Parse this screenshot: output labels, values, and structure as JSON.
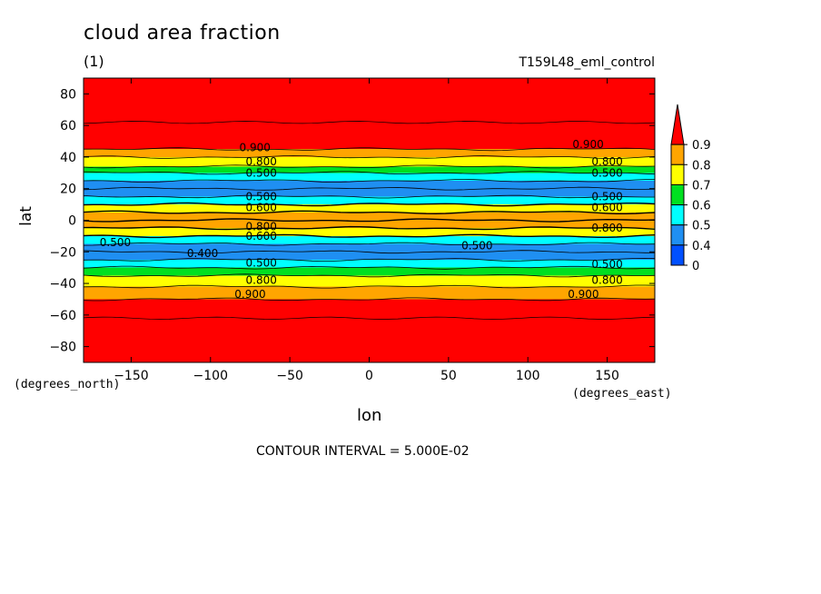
{
  "header": {
    "title": "cloud area fraction",
    "units": "(1)",
    "run_name": "T159L48_eml_control"
  },
  "footer": {
    "contour_interval": "CONTOUR INTERVAL = 5.000E-02",
    "lat_units": "(degrees_north)",
    "lon_units": "(degrees_east)"
  },
  "chart_data": {
    "type": "heatmap",
    "title": "cloud area fraction",
    "xlabel": "lon",
    "ylabel": "lat",
    "xlim": [
      -180,
      180
    ],
    "ylim": [
      -90,
      90
    ],
    "x_ticks": [
      -150,
      -100,
      -50,
      0,
      50,
      100,
      150
    ],
    "y_ticks": [
      80,
      60,
      40,
      20,
      0,
      -20,
      -40,
      -60,
      -80
    ],
    "colorbar": {
      "levels": [
        "0",
        "0.4",
        "0.5",
        "0.6",
        "0.7",
        "0.8",
        "0.9"
      ],
      "colors": [
        "#0050ff",
        "#1f8ff2",
        "#00ffff",
        "#00e020",
        "#ffff00",
        "#ffa500",
        "#ff0000"
      ],
      "extend": "max"
    },
    "zonal_profile": [
      {
        "lat": 90,
        "value": 0.93
      },
      {
        "lat": 45,
        "value": 0.9
      },
      {
        "lat": 40,
        "value": 0.8
      },
      {
        "lat": 34,
        "value": 0.7
      },
      {
        "lat": 30,
        "value": 0.6
      },
      {
        "lat": 25,
        "value": 0.5
      },
      {
        "lat": 20,
        "value": 0.45
      },
      {
        "lat": 15,
        "value": 0.5
      },
      {
        "lat": 10,
        "value": 0.6
      },
      {
        "lat": 5,
        "value": 0.8
      },
      {
        "lat": 0,
        "value": 0.95
      },
      {
        "lat": -5,
        "value": 0.8
      },
      {
        "lat": -10,
        "value": 0.6
      },
      {
        "lat": -15,
        "value": 0.5
      },
      {
        "lat": -20,
        "value": 0.45
      },
      {
        "lat": -25,
        "value": 0.5
      },
      {
        "lat": -30,
        "value": 0.6
      },
      {
        "lat": -35,
        "value": 0.7
      },
      {
        "lat": -42,
        "value": 0.8
      },
      {
        "lat": -50,
        "value": 0.9
      },
      {
        "lat": -90,
        "value": 0.93
      }
    ],
    "contour_labels": [
      {
        "text": "0.900",
        "lon": -72,
        "lat": 46
      },
      {
        "text": "0.800",
        "lon": -68,
        "lat": 37
      },
      {
        "text": "0.500",
        "lon": -68,
        "lat": 15
      },
      {
        "text": "0.500",
        "lon": -68,
        "lat": 30
      },
      {
        "text": "0.600",
        "lon": -68,
        "lat": 8
      },
      {
        "text": "0.800",
        "lon": -68,
        "lat": -4
      },
      {
        "text": "0.600",
        "lon": -68,
        "lat": -10
      },
      {
        "text": "0.500",
        "lon": -160,
        "lat": -14
      },
      {
        "text": "0.400",
        "lon": -105,
        "lat": -21
      },
      {
        "text": "0.500",
        "lon": -68,
        "lat": -27
      },
      {
        "text": "0.800",
        "lon": -68,
        "lat": -38
      },
      {
        "text": "0.900",
        "lon": -75,
        "lat": -47
      },
      {
        "text": "0.500",
        "lon": 68,
        "lat": -16
      },
      {
        "text": "0.900",
        "lon": 138,
        "lat": 48
      },
      {
        "text": "0.800",
        "lon": 150,
        "lat": 37
      },
      {
        "text": "0.500",
        "lon": 150,
        "lat": 30
      },
      {
        "text": "0.500",
        "lon": 150,
        "lat": 15
      },
      {
        "text": "0.600",
        "lon": 150,
        "lat": 8
      },
      {
        "text": "0.800",
        "lon": 150,
        "lat": -5
      },
      {
        "text": "0.500",
        "lon": 150,
        "lat": -28
      },
      {
        "text": "0.800",
        "lon": 150,
        "lat": -38
      },
      {
        "text": "0.900",
        "lon": 135,
        "lat": -47
      }
    ]
  }
}
